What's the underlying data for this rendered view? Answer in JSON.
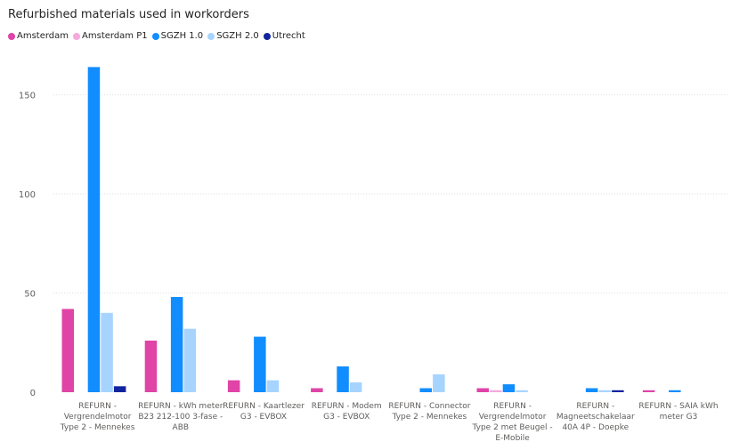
{
  "chart_data": {
    "type": "bar",
    "title": "Refurbished materials used in workorders",
    "legend_position": "top-left",
    "categories": [
      "REFURN - Vergrendelmotor Type 2 - Mennekes",
      "REFURN - kWh meter B23 212-100 3-fase - ABB",
      "REFURN - Kaartlezer G3 - EVBOX",
      "REFURN - Modem G3 - EVBOX",
      "REFURN - Connector Type 2 - Mennekes",
      "REFURN - Vergrendelmotor Type 2 met Beugel - E-Mobile",
      "REFURN - Magneetschakelaar 40A 4P - Doepke",
      "REFURN - SAIA kWh meter G3"
    ],
    "category_lines": [
      [
        "REFURN -",
        "Vergrendelmotor",
        "Type 2 - Mennekes"
      ],
      [
        "REFURN - kWh meter",
        "B23 212-100 3-fase -",
        "ABB"
      ],
      [
        "REFURN - Kaartlezer",
        "G3 - EVBOX"
      ],
      [
        "REFURN - Modem",
        "G3 - EVBOX"
      ],
      [
        "REFURN - Connector",
        "Type 2 - Mennekes"
      ],
      [
        "REFURN -",
        "Vergrendelmotor",
        "Type 2 met Beugel -",
        "E-Mobile"
      ],
      [
        "REFURN -",
        "Magneetschakelaar",
        "40A 4P - Doepke"
      ],
      [
        "REFURN - SAIA kWh",
        "meter G3"
      ]
    ],
    "series": [
      {
        "name": "Amsterdam",
        "color": "#e044a7",
        "values": [
          42,
          26,
          6,
          2,
          0,
          2,
          0,
          1
        ]
      },
      {
        "name": "Amsterdam P1",
        "color": "#f4a9dd",
        "values": [
          0,
          0,
          0,
          0,
          0,
          1,
          0,
          0
        ]
      },
      {
        "name": "SGZH 1.0",
        "color": "#118dff",
        "values": [
          164,
          48,
          28,
          13,
          2,
          4,
          2,
          1
        ]
      },
      {
        "name": "SGZH 2.0",
        "color": "#a7d4ff",
        "values": [
          40,
          32,
          6,
          5,
          9,
          1,
          1,
          0
        ]
      },
      {
        "name": "Utrecht",
        "color": "#12239e",
        "values": [
          3,
          0,
          0,
          0,
          0,
          0,
          1,
          0
        ]
      }
    ],
    "y_ticks": [
      0,
      50,
      100,
      150
    ],
    "ylim": [
      0,
      170
    ],
    "grid": true
  }
}
